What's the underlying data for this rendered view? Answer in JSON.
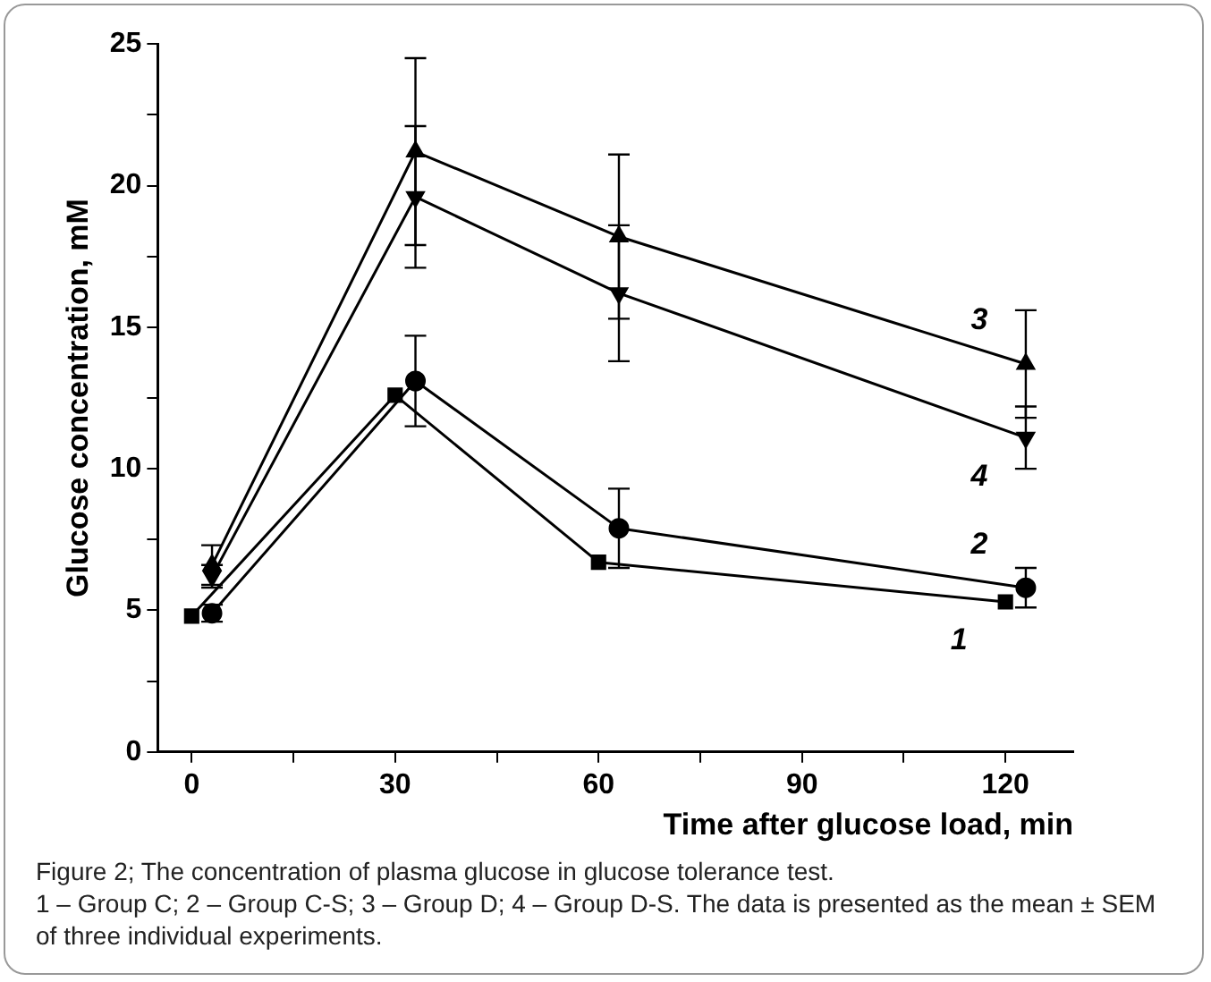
{
  "chart_data": {
    "type": "line",
    "xlabel": "Time after glucose load, min",
    "ylabel": "Glucose concentration, mM",
    "annotations": [
      "Figure 2; The concentration of plasma glucose in glucose tolerance test.",
      "1 – Group C; 2 – Group C-S; 3 – Group D; 4 – Group D-S. The data is presented as the mean ± SEM of three individual experiments."
    ],
    "series": [
      {
        "name": "1",
        "color": "#000000",
        "marker": "square",
        "x": [
          0,
          30,
          60,
          120
        ],
        "values": [
          4.8,
          12.6,
          6.7,
          5.3
        ],
        "errors": [
          null,
          null,
          null,
          null
        ]
      },
      {
        "name": "2",
        "color": "#000000",
        "marker": "circle",
        "x": [
          3,
          33,
          63,
          123
        ],
        "values": [
          4.9,
          13.1,
          7.9,
          5.8
        ],
        "errors": [
          0.3,
          1.6,
          1.4,
          0.7
        ]
      },
      {
        "name": "3",
        "color": "#000000",
        "marker": "triangle",
        "x": [
          3,
          33,
          63,
          123
        ],
        "values": [
          6.6,
          21.2,
          18.2,
          13.7
        ],
        "errors": [
          0.7,
          3.3,
          2.9,
          1.9
        ]
      },
      {
        "name": "4",
        "color": "#000000",
        "marker": "triangle-down",
        "x": [
          3,
          33,
          63,
          123
        ],
        "values": [
          6.2,
          19.6,
          16.2,
          11.1
        ],
        "errors": [
          0.4,
          2.5,
          2.4,
          1.1
        ]
      }
    ],
    "xlim": [
      -5,
      130
    ],
    "xticks": [
      0,
      {
        "value": 15,
        "label": null
      },
      30,
      {
        "value": 45,
        "label": null
      },
      60,
      {
        "value": 75,
        "label": null
      },
      90,
      {
        "value": 105,
        "label": null
      },
      120
    ],
    "ylim": [
      0,
      25
    ],
    "yticks": [
      0,
      {
        "value": 2.5,
        "label": null
      },
      5,
      {
        "value": 7.5,
        "label": null
      },
      10,
      {
        "value": 12.5,
        "label": null
      },
      15,
      {
        "value": 17.5,
        "label": null
      },
      20,
      {
        "value": 22.5,
        "label": null
      },
      25
    ],
    "grid": false,
    "legend": false,
    "line_style": "solid"
  }
}
